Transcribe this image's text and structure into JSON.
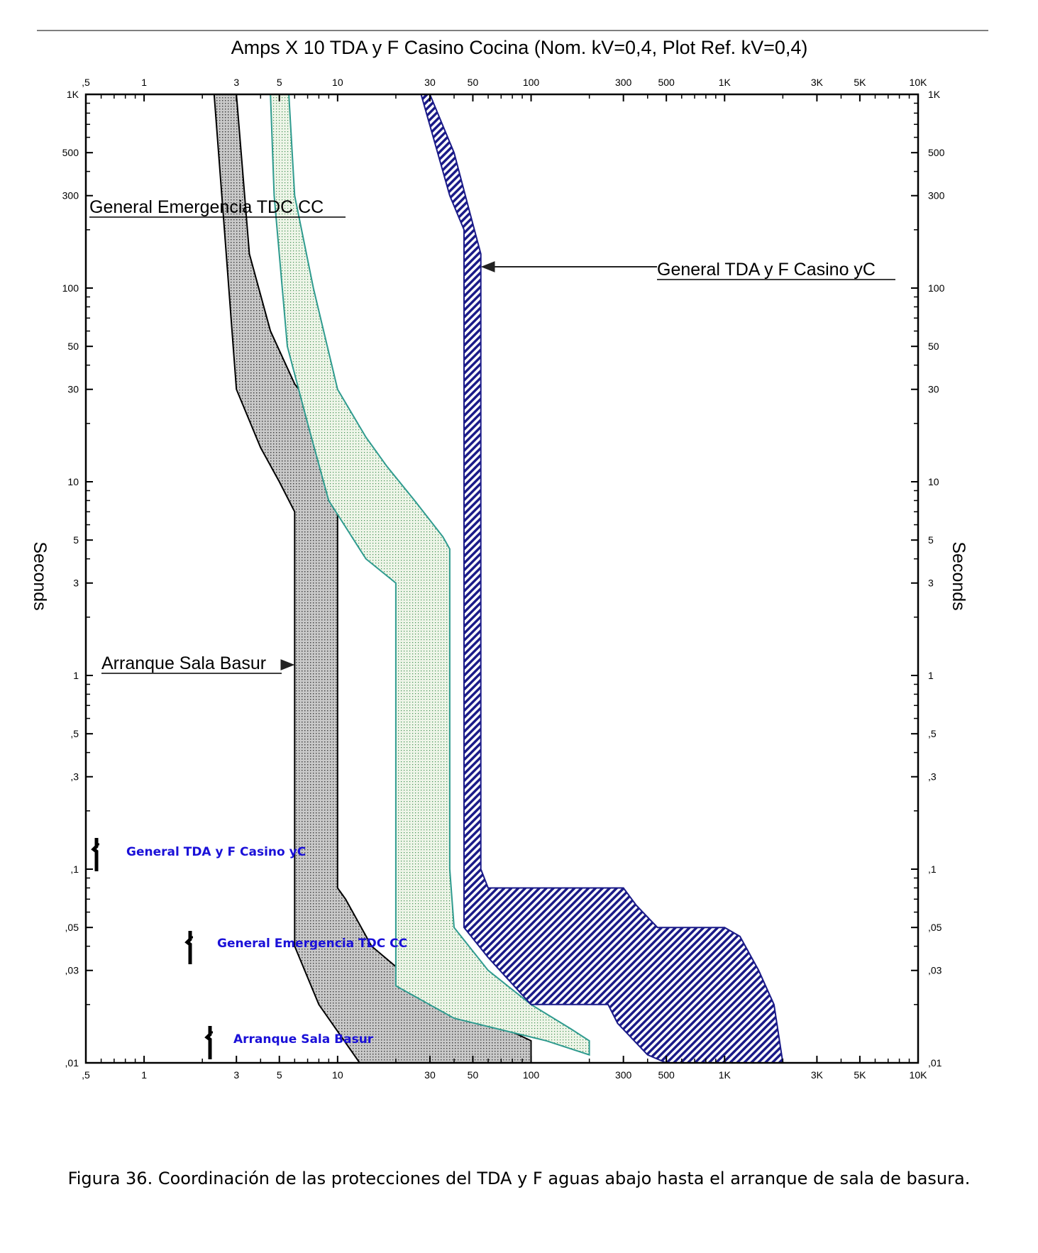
{
  "chart_data": {
    "type": "area",
    "title": "Amps  X  10   TDA y F Casino Cocina (Nom. kV=0,4,  Plot Ref. kV=0,4)",
    "ylabel": "Seconds",
    "x_scale": "log",
    "y_scale": "log",
    "xlim": [
      0.5,
      10000
    ],
    "ylim": [
      0.01,
      1000
    ],
    "x_ticks": [
      0.5,
      1,
      3,
      5,
      10,
      30,
      50,
      100,
      300,
      500,
      1000,
      3000,
      5000,
      10000
    ],
    "x_tick_labels": [
      ",5",
      "1",
      "3",
      "5",
      "10",
      "30",
      "50",
      "100",
      "300",
      "500",
      "1K",
      "3K",
      "5K",
      "10K"
    ],
    "y_ticks": [
      1000,
      500,
      300,
      100,
      50,
      30,
      10,
      5,
      3,
      1,
      0.5,
      0.3,
      0.1,
      0.05,
      0.03,
      0.01
    ],
    "y_tick_labels": [
      "1K",
      "500",
      "300",
      "100",
      "50",
      "30",
      "10",
      "5",
      "3",
      "1",
      ",5",
      ",3",
      ",1",
      ",05",
      ",03",
      ",01"
    ],
    "grid": false,
    "series": [
      {
        "name": "Arranque Sala Basur",
        "fill": "dots-gray",
        "color": "#000000",
        "boundary": [
          [
            2.3,
            1000
          ],
          [
            2.6,
            200
          ],
          [
            3,
            30
          ],
          [
            4,
            15
          ],
          [
            5,
            10
          ],
          [
            6,
            7
          ],
          [
            6,
            0.1
          ],
          [
            6,
            0.055
          ],
          [
            6,
            0.04
          ],
          [
            8,
            0.02
          ],
          [
            13,
            0.01
          ],
          [
            100,
            0.01
          ],
          [
            100,
            0.013
          ],
          [
            50,
            0.018
          ],
          [
            25,
            0.026
          ],
          [
            15,
            0.04
          ],
          [
            11,
            0.07
          ],
          [
            10,
            0.08
          ],
          [
            10,
            0.4
          ],
          [
            10,
            7
          ],
          [
            10,
            12
          ],
          [
            9,
            15
          ],
          [
            8,
            22
          ],
          [
            6,
            32
          ],
          [
            4.5,
            60
          ],
          [
            3.5,
            150
          ],
          [
            3,
            1000
          ]
        ]
      },
      {
        "name": "General Emergencia TDC CC",
        "fill": "dots-green",
        "color": "#2f9b8f",
        "boundary": [
          [
            4.5,
            1000
          ],
          [
            4.7,
            300
          ],
          [
            5.5,
            50
          ],
          [
            7,
            20
          ],
          [
            9,
            8
          ],
          [
            14,
            4
          ],
          [
            20,
            3
          ],
          [
            20,
            0.5
          ],
          [
            20,
            0.025
          ],
          [
            40,
            0.017
          ],
          [
            120,
            0.013
          ],
          [
            200,
            0.011
          ],
          [
            200,
            0.013
          ],
          [
            160,
            0.015
          ],
          [
            100,
            0.02
          ],
          [
            60,
            0.03
          ],
          [
            40,
            0.05
          ],
          [
            38,
            0.1
          ],
          [
            38,
            4.5
          ],
          [
            35,
            5.2
          ],
          [
            25,
            8
          ],
          [
            18,
            12
          ],
          [
            14,
            17
          ],
          [
            10,
            30
          ],
          [
            7.5,
            100
          ],
          [
            6,
            300
          ],
          [
            5.6,
            1000
          ]
        ]
      },
      {
        "name": "General TDA y F Casino yC",
        "fill": "hatch-navy",
        "color": "#1a1a88",
        "boundary": [
          [
            27,
            1000
          ],
          [
            32,
            550
          ],
          [
            38,
            300
          ],
          [
            45,
            200
          ],
          [
            45,
            1
          ],
          [
            45,
            0.05
          ],
          [
            60,
            0.035
          ],
          [
            100,
            0.02
          ],
          [
            250,
            0.02
          ],
          [
            280,
            0.016
          ],
          [
            400,
            0.011
          ],
          [
            500,
            0.01
          ],
          [
            2000,
            0.01
          ],
          [
            1800,
            0.02
          ],
          [
            1500,
            0.03
          ],
          [
            1200,
            0.045
          ],
          [
            1000,
            0.05
          ],
          [
            450,
            0.05
          ],
          [
            350,
            0.065
          ],
          [
            300,
            0.08
          ],
          [
            60,
            0.08
          ],
          [
            55,
            0.1
          ],
          [
            55,
            1
          ],
          [
            55,
            150
          ],
          [
            48,
            250
          ],
          [
            40,
            500
          ],
          [
            30,
            1000
          ]
        ]
      }
    ],
    "annotations": [
      {
        "text": "General Emergencia TDC CC"
      },
      {
        "text": "General TDA y F Casino yC",
        "arrow_to": [
          55,
          150
        ]
      },
      {
        "text": "Arranque Sala Basur",
        "arrow_to": [
          6,
          1
        ]
      }
    ],
    "legend": {
      "placement": "bottom-left",
      "entries": [
        "General TDA y F Casino yC",
        "General Emergencia TDC CC",
        "Arranque Sala Basur"
      ]
    }
  },
  "caption": "Figura 36.    Coordinación de las protecciones del TDA y F aguas abajo hasta el arranque de sala de basura."
}
